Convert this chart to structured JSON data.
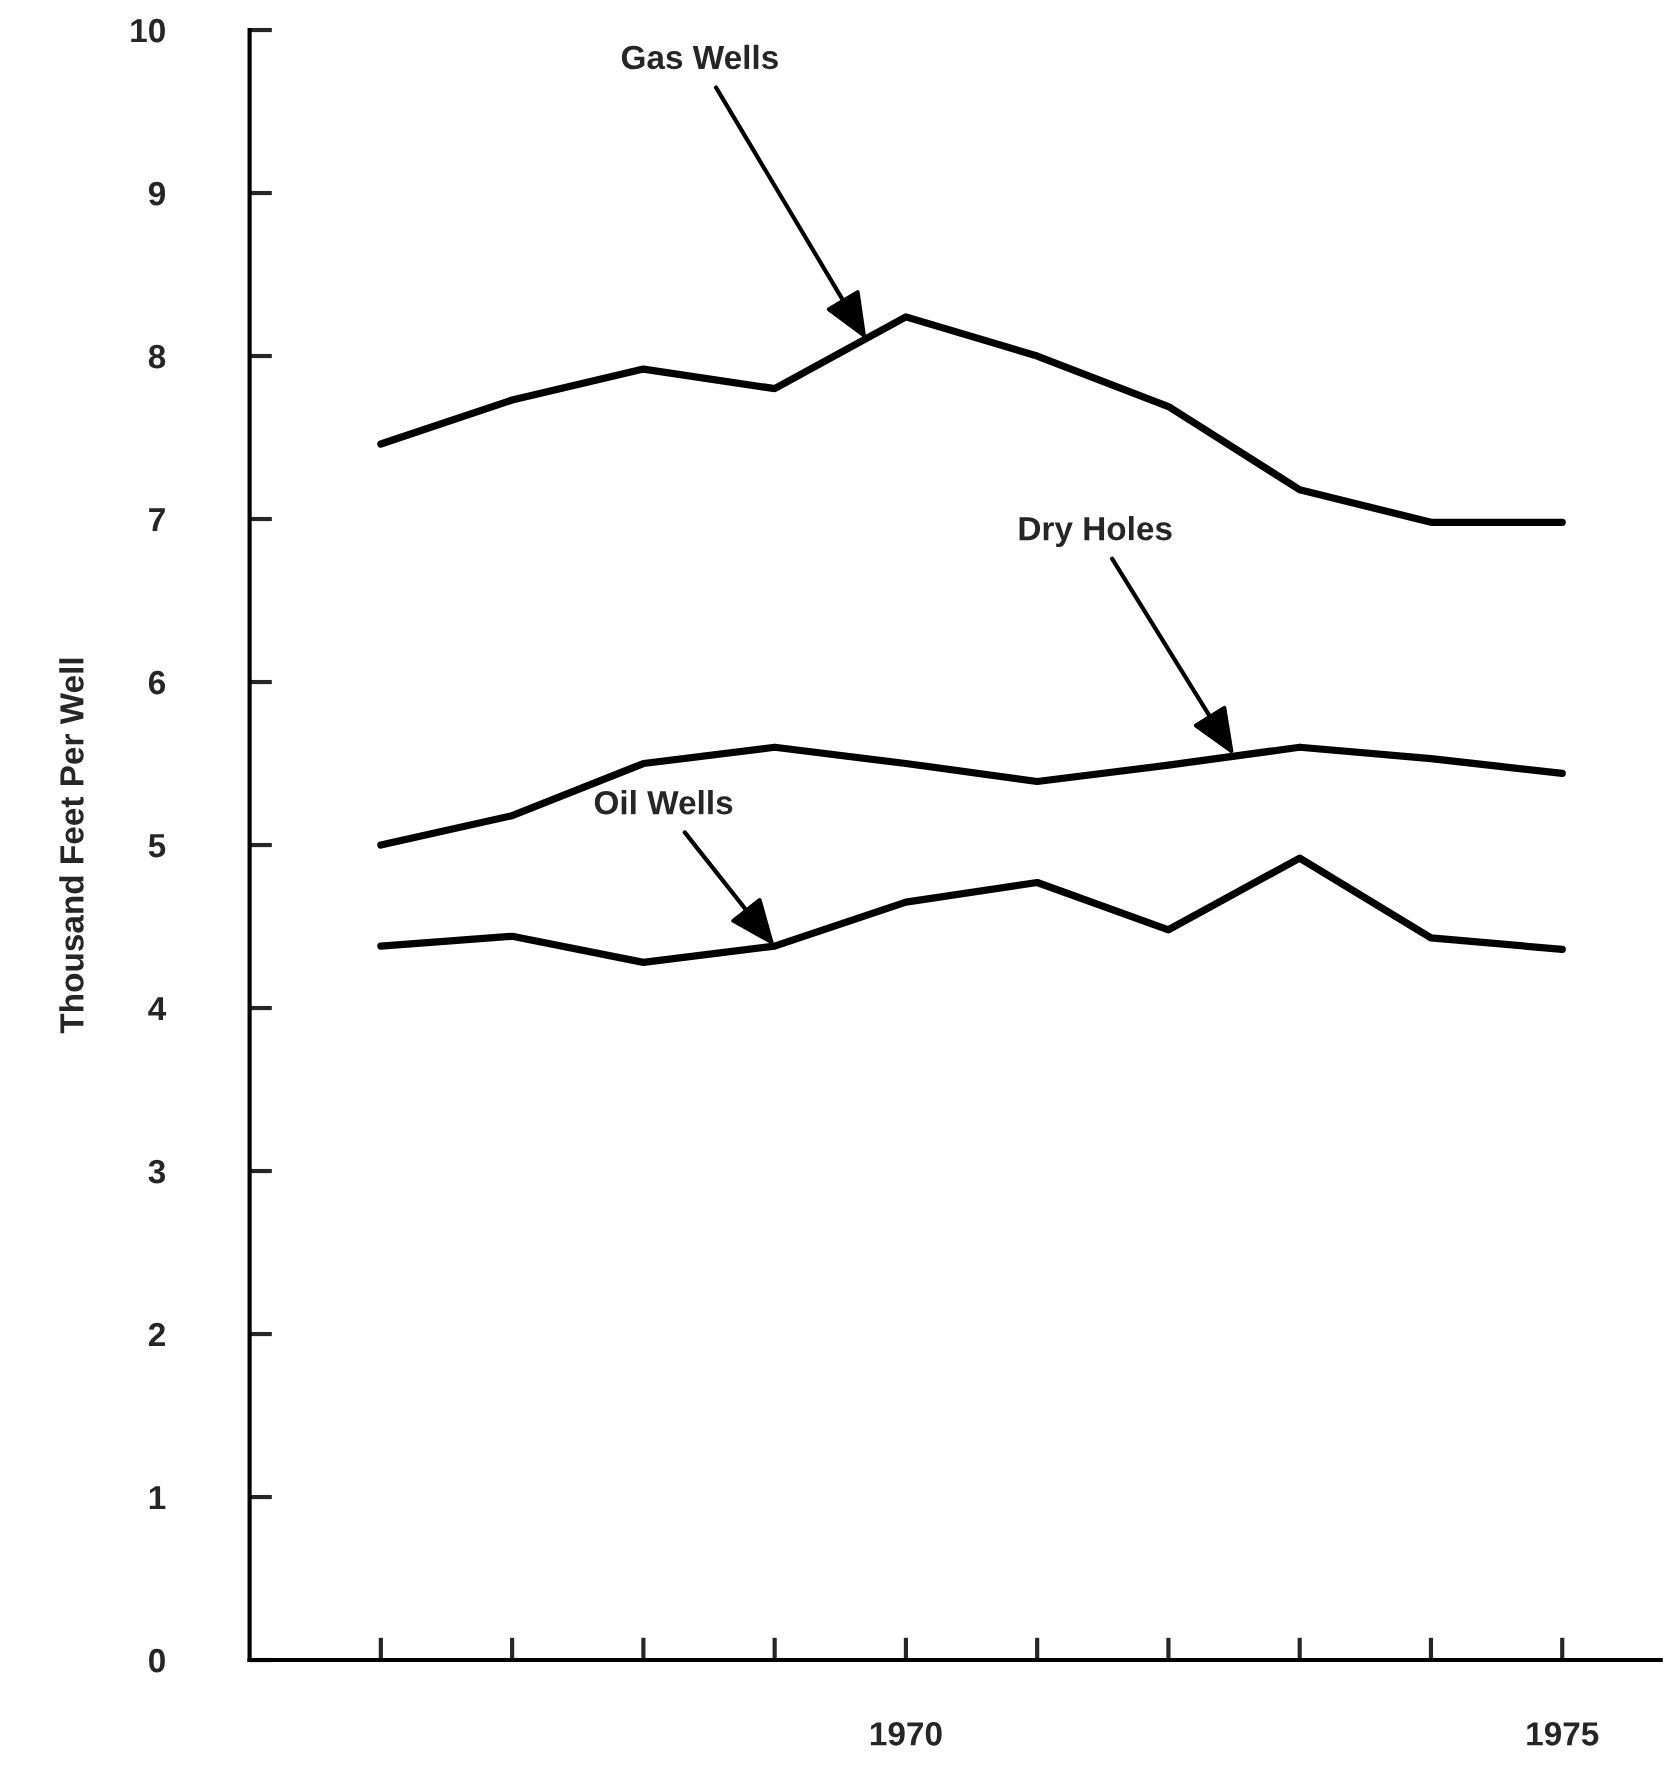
{
  "chart_data": {
    "type": "line",
    "ylabel": "Thousand Feet Per Well",
    "x": [
      1966,
      1967,
      1968,
      1969,
      1970,
      1971,
      1972,
      1973,
      1974,
      1975
    ],
    "series": [
      {
        "color": "#000000",
        "values": [
          7.46,
          7.73,
          7.92,
          7.8,
          8.24,
          8.0,
          7.69,
          7.18,
          6.98,
          6.98
        ]
      },
      {
        "color": "#000000",
        "values": [
          5.0,
          5.18,
          5.5,
          5.6,
          5.5,
          5.39,
          5.49,
          5.6,
          5.53,
          5.44
        ]
      },
      {
        "color": "#000000",
        "values": [
          4.38,
          4.44,
          4.28,
          4.38,
          4.65,
          4.77,
          4.48,
          4.92,
          4.43,
          4.36
        ]
      }
    ],
    "xlim": [
      1965,
      1975.75
    ],
    "xticks": [
      {
        "value": 1966,
        "label": null
      },
      {
        "value": 1967,
        "label": null
      },
      {
        "value": 1968,
        "label": null
      },
      {
        "value": 1969,
        "label": null
      },
      {
        "value": 1970,
        "label": "1970"
      },
      {
        "value": 1971,
        "label": null
      },
      {
        "value": 1972,
        "label": null
      },
      {
        "value": 1973,
        "label": null
      },
      {
        "value": 1974,
        "label": null
      },
      {
        "value": 1975,
        "label": "1975"
      }
    ],
    "ylim": [
      0,
      10
    ],
    "yticks": [
      0,
      1,
      2,
      3,
      4,
      5,
      6,
      7,
      8,
      9,
      10
    ],
    "grid": false,
    "marker": "none",
    "line_style": "solid",
    "annotations": [
      {
        "text": "Gas Wells",
        "x": 1969.7,
        "y": 8.1
      },
      {
        "text": "Dry Holes",
        "x": 1972.5,
        "y": 5.55
      },
      {
        "text": "Oil Wells",
        "x": 1969.0,
        "y": 4.38
      }
    ]
  }
}
